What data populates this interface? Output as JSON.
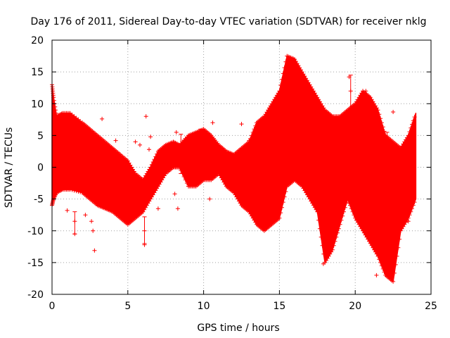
{
  "chart_data": {
    "type": "scatter",
    "title": "Day 176 of 2011, Sidereal Day-to-day VTEC variation (SDTVAR) for receiver nklg",
    "xlabel": "GPS time / hours",
    "ylabel": "SDTVAR / TECUs",
    "xlim": [
      0,
      25
    ],
    "ylim": [
      -20,
      20
    ],
    "xticks": [
      0,
      5,
      10,
      15,
      20,
      25
    ],
    "yticks": [
      -20,
      -15,
      -10,
      -5,
      0,
      5,
      10,
      15,
      20
    ],
    "grid": true,
    "marker": "+",
    "series_color": "#ff0000",
    "envelope": {
      "x": [
        0,
        0.1,
        0.3,
        0.7,
        1.2,
        2,
        2.5,
        3,
        3.5,
        4,
        4.5,
        5,
        5.5,
        6,
        6.5,
        7,
        7.5,
        8,
        8.4,
        9,
        9.5,
        10,
        10.5,
        11,
        11.5,
        12,
        12.5,
        13,
        13.5,
        14,
        14.5,
        15,
        15.5,
        16,
        16.5,
        17,
        17.5,
        18,
        18.5,
        19,
        19.5,
        20,
        20.5,
        21,
        21.5,
        22,
        22.5,
        23,
        23.5,
        24
      ],
      "upper": [
        13,
        11,
        8,
        8.5,
        8.5,
        7,
        6,
        5,
        4,
        3,
        2,
        1,
        -1,
        -2,
        0,
        2.5,
        3.5,
        4,
        3.5,
        5,
        5.5,
        6,
        5,
        3.5,
        2.5,
        2,
        3,
        4,
        7,
        8,
        10,
        12,
        17.5,
        17,
        15,
        13,
        11,
        9,
        8,
        8,
        9,
        10,
        12,
        11,
        9,
        5,
        4,
        3,
        5,
        8.5
      ],
      "lower": [
        -6,
        -5,
        -4,
        -3.5,
        -3.5,
        -4,
        -5,
        -6,
        -6.5,
        -7,
        -8,
        -9,
        -8,
        -7,
        -5,
        -3,
        -1,
        0,
        0,
        -3,
        -3,
        -2,
        -2,
        -1,
        -3,
        -4,
        -6,
        -7,
        -9,
        -10,
        -9,
        -8,
        -3,
        -2,
        -3,
        -5,
        -7,
        -15,
        -13,
        -9,
        -5,
        -8,
        -10,
        -12,
        -14,
        -17,
        -18,
        -10,
        -8,
        -5
      ]
    },
    "outliers": [
      {
        "x": 1.0,
        "y": -6.8
      },
      {
        "x": 1.5,
        "y": -10.5
      },
      {
        "x": 2.2,
        "y": -7.5
      },
      {
        "x": 2.6,
        "y": -8.5
      },
      {
        "x": 2.7,
        "y": -10.0
      },
      {
        "x": 2.8,
        "y": -13.1
      },
      {
        "x": 3.3,
        "y": 7.6
      },
      {
        "x": 4.2,
        "y": 4.2
      },
      {
        "x": 5.5,
        "y": 4.0
      },
      {
        "x": 5.8,
        "y": 3.5
      },
      {
        "x": 6.1,
        "y": -12.2
      },
      {
        "x": 6.2,
        "y": 8.0
      },
      {
        "x": 6.5,
        "y": 4.8
      },
      {
        "x": 6.4,
        "y": 2.8
      },
      {
        "x": 7.0,
        "y": -6.5
      },
      {
        "x": 8.2,
        "y": 5.5
      },
      {
        "x": 8.3,
        "y": -6.5
      },
      {
        "x": 8.1,
        "y": -4.2
      },
      {
        "x": 9.0,
        "y": -3.0
      },
      {
        "x": 10.4,
        "y": -5.0
      },
      {
        "x": 10.6,
        "y": 7.0
      },
      {
        "x": 12.5,
        "y": 6.8
      },
      {
        "x": 13.0,
        "y": 4.2
      },
      {
        "x": 13.8,
        "y": 5.0
      },
      {
        "x": 14.2,
        "y": 0.8
      },
      {
        "x": 17.9,
        "y": -15.2
      },
      {
        "x": 18.5,
        "y": -12.0
      },
      {
        "x": 19.6,
        "y": 14.2
      },
      {
        "x": 20.0,
        "y": 9.5
      },
      {
        "x": 20.7,
        "y": 12.0
      },
      {
        "x": 21.3,
        "y": 8.0
      },
      {
        "x": 21.4,
        "y": -17.0
      },
      {
        "x": 22.0,
        "y": 5.0
      },
      {
        "x": 22.5,
        "y": 8.7
      },
      {
        "x": 23.0,
        "y": 2.0
      },
      {
        "x": 23.5,
        "y": -8.5
      }
    ],
    "errorbars": [
      {
        "x": 1.5,
        "y": -8.5,
        "lo": -10.5,
        "hi": -7.0
      },
      {
        "x": 6.1,
        "y": -10.0,
        "lo": -12.0,
        "hi": -7.8
      },
      {
        "x": 8.5,
        "y": 2.0,
        "lo": -1.0,
        "hi": 5.2
      },
      {
        "x": 9.8,
        "y": 2.0,
        "lo": -1.0,
        "hi": 6.0
      },
      {
        "x": 14.2,
        "y": 2.5,
        "lo": 0.5,
        "hi": 5.0
      },
      {
        "x": 19.7,
        "y": 12.0,
        "lo": 9.0,
        "hi": 14.5
      },
      {
        "x": 22.1,
        "y": 3.0,
        "lo": 0.0,
        "hi": 5.5
      }
    ]
  }
}
